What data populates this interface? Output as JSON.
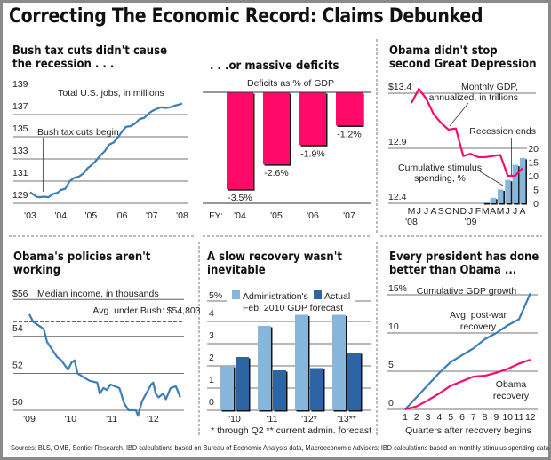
{
  "title": "Correcting The Economic Record: Claims Debunked",
  "sources": "Sources: BLS, OMB, Sentier Research, IBD calculations based on Bureau of Economic Analysis data, Macroeconomic Advisers; IBD calculations based on monthly stimulus spending data",
  "colors": {
    "blue_line": "#3b7db8",
    "pink": "#ff0a68",
    "light_bar": "#86b6dc",
    "dark_bar": "#2d64a3"
  },
  "chart_data": [
    {
      "type": "line",
      "title": "Bush tax cuts didn't cause the recession . . .",
      "subtitle": "Total U.S. jobs, in millions",
      "annotation": "Bush tax cuts begin",
      "annotation_x": 2003.42,
      "x_ticks": [
        "'03",
        "'04",
        "'05",
        "'06",
        "'07",
        "'08"
      ],
      "y_ticks": [
        "139",
        "137",
        "135",
        "133",
        "131",
        "129"
      ],
      "ylim": [
        129,
        139
      ],
      "x": [
        2003.0,
        2003.1,
        2003.2,
        2003.3,
        2003.45,
        2003.6,
        2003.75,
        2003.9,
        2004.0,
        2004.15,
        2004.3,
        2004.45,
        2004.6,
        2004.75,
        2004.9,
        2005.0,
        2005.15,
        2005.3,
        2005.45,
        2005.6,
        2005.75,
        2005.9,
        2006.0,
        2006.15,
        2006.3,
        2006.45,
        2006.6,
        2006.75,
        2006.9,
        2007.0,
        2007.15,
        2007.3,
        2007.45,
        2007.6,
        2007.75,
        2007.9,
        2008.0
      ],
      "values": [
        130.0,
        129.8,
        129.6,
        129.55,
        129.6,
        129.55,
        129.85,
        129.95,
        130.2,
        130.3,
        131.0,
        131.3,
        131.4,
        131.7,
        132.2,
        132.4,
        132.8,
        133.3,
        133.7,
        134.3,
        134.5,
        135.0,
        135.4,
        135.9,
        135.95,
        136.2,
        136.6,
        136.7,
        137.1,
        137.3,
        137.5,
        137.65,
        137.6,
        137.65,
        137.8,
        137.9,
        138.0
      ]
    },
    {
      "type": "bar",
      "title": ". . .or massive deficits",
      "subtitle": "Deficits as % of GDP",
      "x_prefix": "FY:",
      "categories": [
        "'04",
        "'05",
        "'06",
        "'07"
      ],
      "values": [
        -3.5,
        -2.6,
        -1.9,
        -1.2
      ],
      "labels": [
        "-3.5%",
        "-2.6%",
        "-1.9%",
        "-1.2%"
      ]
    },
    {
      "type": "line",
      "title": "Obama didn't stop second Great Depression",
      "series": [
        {
          "name": "Monthly GDP, annualized, in trillions",
          "axis": "left",
          "values": [
            13.31,
            13.44,
            13.35,
            13.21,
            13.13,
            13.07,
            13.08,
            12.83,
            12.85,
            12.82,
            12.82,
            12.83,
            12.84,
            12.65,
            12.65,
            12.72
          ]
        },
        {
          "name": "Cumulative stimulus spending, %",
          "axis": "right",
          "type": "bar",
          "values": [
            null,
            null,
            null,
            null,
            null,
            null,
            null,
            null,
            null,
            null,
            0.5,
            2,
            5,
            8.5,
            14,
            16.5
          ]
        }
      ],
      "series_labels": [
        "Monthly GDP,",
        "annualized, in trillions",
        "Cumulative stimulus",
        "spending, %"
      ],
      "annotation": "Recession ends",
      "annotation_month_index": 13.5,
      "months": [
        "M",
        "J",
        "J",
        "A",
        "S",
        "O",
        "N",
        "D",
        "J",
        "F",
        "M",
        "A",
        "M",
        "J",
        "J",
        "A"
      ],
      "years": [
        "'08",
        "'09"
      ],
      "y_ticks_left": [
        "$13.4",
        "12.9",
        "12.4"
      ],
      "ylim_left": [
        12.4,
        13.4
      ],
      "y_ticks_right": [
        "20",
        "15",
        "10",
        "5",
        "0"
      ],
      "ylim_right": [
        0,
        20
      ]
    },
    {
      "type": "line",
      "title": "Obama's policies aren't working",
      "subtitle": "Median income, in thousands",
      "reference_label": "Avg. under Bush: $54,803",
      "reference_value": 54.803,
      "x_ticks": [
        "'09",
        "'10",
        "'11",
        "'12"
      ],
      "y_ticks": [
        "$56",
        "54",
        "52",
        "50"
      ],
      "ylim": [
        50,
        56
      ],
      "x": [
        2009.0,
        2009.09,
        2009.35,
        2009.43,
        2009.67,
        2009.78,
        2009.94,
        2010.03,
        2010.1,
        2010.17,
        2010.46,
        2010.65,
        2010.71,
        2010.8,
        2010.89,
        2010.97,
        2011.19,
        2011.3,
        2011.41,
        2011.59,
        2011.64,
        2011.74,
        2011.96,
        2012.01,
        2012.07,
        2012.14,
        2012.25,
        2012.32,
        2012.43,
        2012.56,
        2012.67
      ],
      "values": [
        55.2,
        54.8,
        54.4,
        53.7,
        52.9,
        52.7,
        52.2,
        52.6,
        52.7,
        52.0,
        51.6,
        51.5,
        50.9,
        51.2,
        51.1,
        51.4,
        51.2,
        50.4,
        50.0,
        50.0,
        49.7,
        50.5,
        51.4,
        51.5,
        50.9,
        50.7,
        50.9,
        50.6,
        51.2,
        51.3,
        50.7
      ]
    },
    {
      "type": "bar",
      "title": "A slow recovery wasn't inevitable",
      "categories": [
        "'10",
        "'11",
        "'12*",
        "'13**"
      ],
      "series": [
        {
          "name": "Administration's Feb. 2010 GDP forecast",
          "values": [
            2.0,
            3.8,
            4.3,
            4.3
          ]
        },
        {
          "name": "Actual",
          "values": [
            2.4,
            1.8,
            1.9,
            2.6
          ]
        }
      ],
      "legend": [
        "Administration's",
        "Feb. 2010 GDP forecast",
        "Actual"
      ],
      "legend_placement": "top",
      "y_ticks": [
        "5%",
        "4",
        "3",
        "2",
        "1",
        "0"
      ],
      "ylim": [
        0,
        5
      ],
      "notes": "* through Q2   ** current admin. forecast"
    },
    {
      "type": "line",
      "title": "Every president has done better than Obama ...",
      "subtitle": "Cumulative GDP growth",
      "xlabel": "Quarters after recovery begins",
      "x": [
        1,
        2,
        3,
        4,
        5,
        6,
        7,
        8,
        9,
        10,
        11,
        12
      ],
      "series": [
        {
          "name": "Avg. post-war recovery",
          "label_lines": [
            "Avg. post-war",
            "recovery"
          ],
          "values": [
            0,
            1.6,
            3.2,
            4.8,
            6.2,
            7.1,
            8.0,
            9.2,
            10.0,
            11.0,
            11.8,
            15.2
          ]
        },
        {
          "name": "Obama recovery",
          "label_lines": [
            "Obama",
            "recovery"
          ],
          "values": [
            0,
            0.4,
            1.2,
            2.1,
            3.1,
            3.7,
            4.3,
            4.4,
            4.8,
            5.3,
            6.0,
            6.5
          ]
        }
      ],
      "y_ticks": [
        "15%",
        "10",
        "5",
        "0"
      ],
      "ylim": [
        0,
        15
      ]
    }
  ]
}
